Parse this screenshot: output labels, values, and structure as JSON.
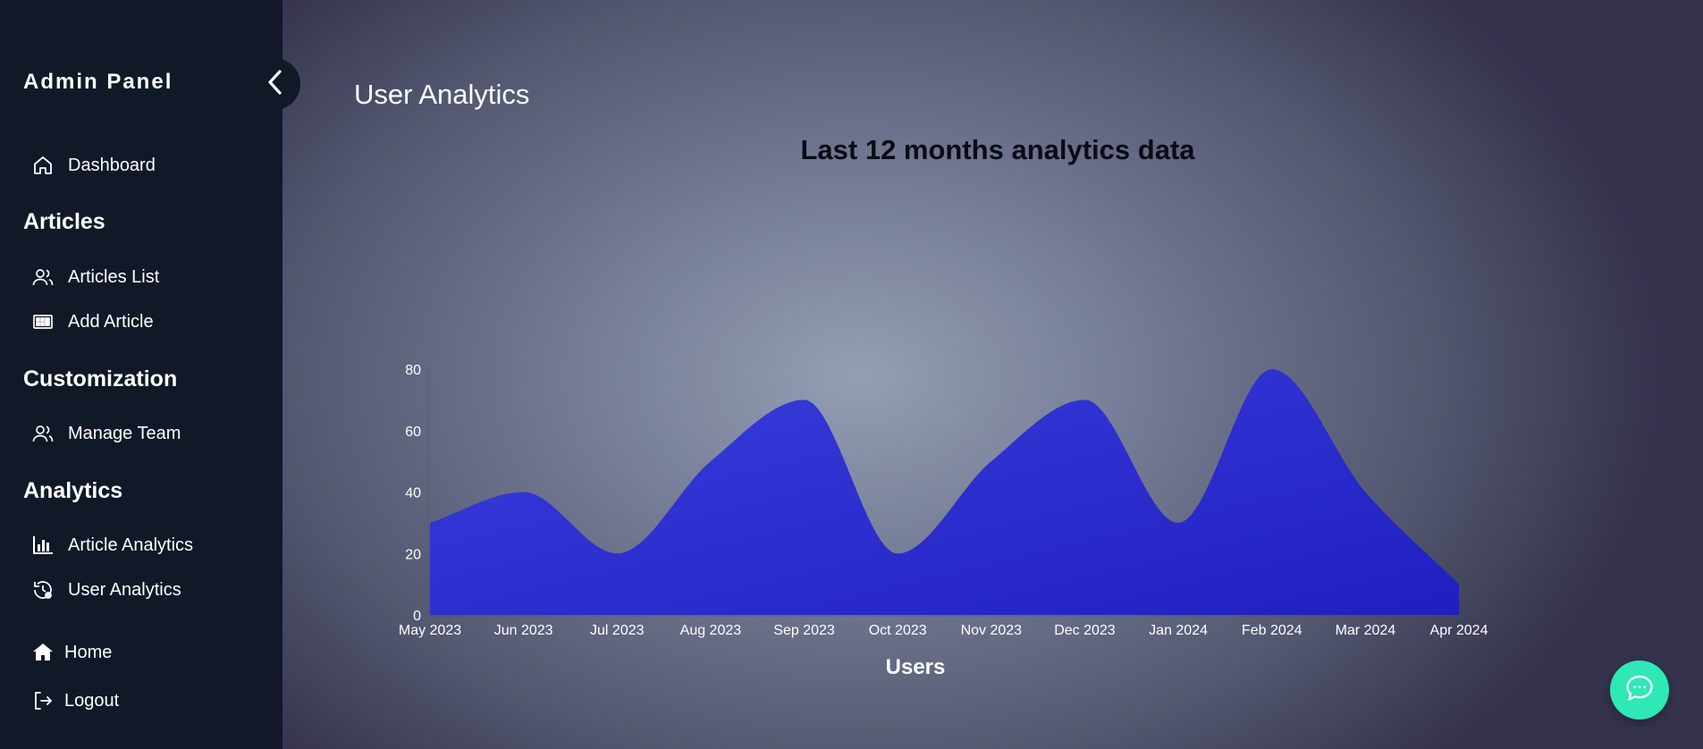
{
  "sidebar": {
    "brand": "Admin Panel",
    "collapse_icon": "chevron-left-icon",
    "dashboard": "Dashboard",
    "sections": {
      "articles": "Articles",
      "customization": "Customization",
      "analytics": "Analytics"
    },
    "items": {
      "articles_list": "Articles List",
      "add_article": "Add Article",
      "manage_team": "Manage Team",
      "article_analytics": "Article Analytics",
      "user_analytics": "User Analytics"
    },
    "home": "Home",
    "logout": "Logout"
  },
  "main": {
    "title": "User Analytics"
  },
  "chat": {
    "icon": "chat-icon",
    "color": "#2ee8b6"
  },
  "colors": {
    "sidebar_bg": "#111827",
    "area_fill_top": "#3a3fdc",
    "area_fill_bottom": "#1f1fbf"
  },
  "chart_data": {
    "type": "area",
    "title": "Last 12 months analytics data",
    "xlabel": "Users",
    "ylabel": "",
    "categories": [
      "May 2023",
      "Jun 2023",
      "Jul 2023",
      "Aug 2023",
      "Sep 2023",
      "Oct 2023",
      "Nov 2023",
      "Dec 2023",
      "Jan 2024",
      "Feb 2024",
      "Mar 2024",
      "Apr 2024"
    ],
    "series": [
      {
        "values": [
          30,
          40,
          20,
          50,
          70,
          20,
          50,
          70,
          30,
          80,
          40,
          10
        ]
      }
    ],
    "ylim": [
      0,
      80
    ],
    "yticks": [
      0,
      20,
      40,
      60,
      80
    ],
    "grid": false,
    "legend": "none"
  }
}
